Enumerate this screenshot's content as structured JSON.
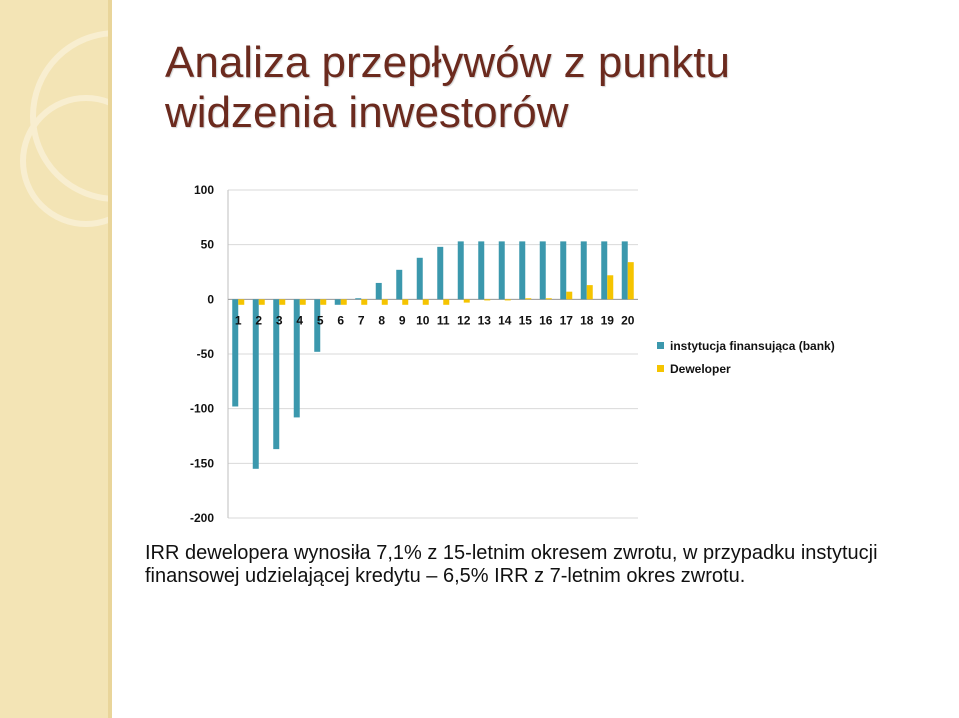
{
  "slide": {
    "title_line1": "Analiza przepływów z punktu",
    "title_line2": "widzenia inwestorów",
    "body_text": "IRR dewelopera wynosiła 7,1% z 15-letnim okresem zwrotu, w przypadku instytucji finansowej udzielającej kredytu – 6,5% IRR z 7-letnim okres zwrotu."
  },
  "colors": {
    "bank": "#3b98ad",
    "developer": "#f5c400",
    "title": "#6b2a1e",
    "sidebar": "#f3e4b5"
  },
  "chart_data": {
    "type": "bar",
    "categories": [
      "1",
      "2",
      "3",
      "4",
      "5",
      "6",
      "7",
      "8",
      "9",
      "10",
      "11",
      "12",
      "13",
      "14",
      "15",
      "16",
      "17",
      "18",
      "19",
      "20"
    ],
    "series": [
      {
        "name": "instytucja finansująca (bank)",
        "values": [
          -98,
          -155,
          -137,
          -108,
          -48,
          -5,
          1,
          15,
          27,
          38,
          48,
          53,
          53,
          53,
          53,
          53,
          53,
          53,
          53,
          53
        ]
      },
      {
        "name": "Deweloper",
        "values": [
          -5,
          -5,
          -5,
          -5,
          -5,
          -5,
          -5,
          -5,
          -5,
          -5,
          -5,
          -3,
          -1,
          -1,
          1,
          1,
          7,
          13,
          22,
          34
        ]
      }
    ],
    "ylim": [
      -200,
      100
    ],
    "yticks": [
      100,
      50,
      0,
      -50,
      -100,
      -150,
      -200
    ],
    "grid": true,
    "legend": "right"
  }
}
